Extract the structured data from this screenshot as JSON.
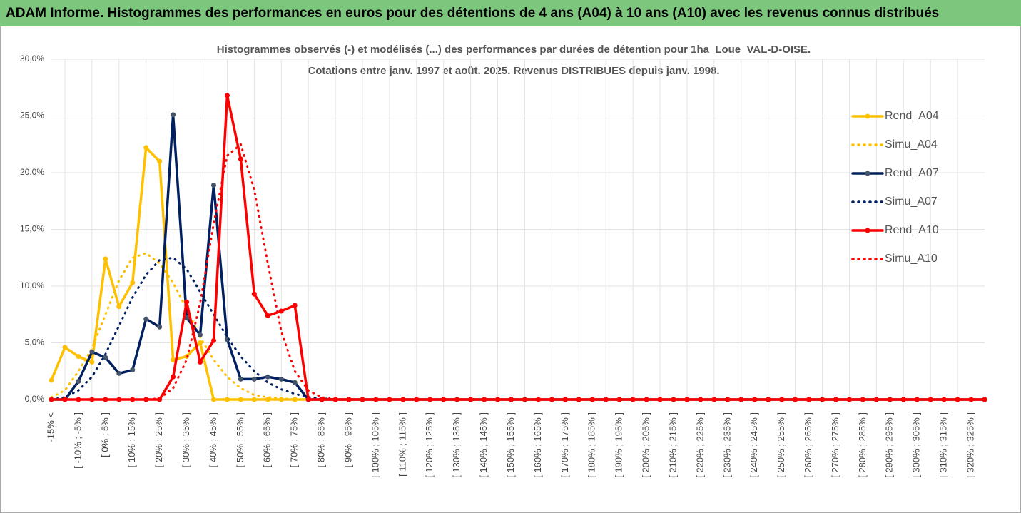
{
  "chart_data": {
    "type": "line",
    "title": "ADAM Informe. Histogrammes des performances en euros pour des détentions de 4 ans (A04) à 10 ans (A10) avec les revenus connus distribués",
    "subtitle": [
      "Histogrammes observés (-) et modélisés (...) des performances par durées de détention pour 1ha_Loue_VAL-D-OISE.",
      "Cotations entre janv. 1997 et août. 2025. Revenus DISTRIBUES depuis janv. 1998."
    ],
    "categories": [
      "-15% <",
      null,
      "[ -10% ; -5% ]",
      null,
      "[ 0% ; 5% ]",
      null,
      "[ 10% ; 15% ]",
      null,
      "[ 20% ; 25% ]",
      null,
      "[ 30% ; 35% ]",
      null,
      "[ 40% ; 45% ]",
      null,
      "[ 50% ; 55% ]",
      null,
      "[ 60% ; 65% ]",
      null,
      "[ 70% ; 75% ]",
      null,
      "[ 80% ; 85% ]",
      null,
      "[ 90% ; 95% ]",
      null,
      "[ 100% ; 105% ]",
      null,
      "[ 110% ; 115% ]",
      null,
      "[ 120% ; 125% ]",
      null,
      "[ 130% ; 135% ]",
      null,
      "[ 140% ; 145% ]",
      null,
      "[ 150% ; 155% ]",
      null,
      "[ 160% ; 165% ]",
      null,
      "[ 170% ; 175% ]",
      null,
      "[ 180% ; 185% ]",
      null,
      "[ 190% ; 195% ]",
      null,
      "[ 200% ; 205% ]",
      null,
      "[ 210% ; 215% ]",
      null,
      "[ 220% ; 225% ]",
      null,
      "[ 230% ; 235% ]",
      null,
      "[ 240% ; 245% ]",
      null,
      "[ 250% ; 255% ]",
      null,
      "[ 260% ; 265% ]",
      null,
      "[ 270% ; 275% ]",
      null,
      "[ 280% ; 285% ]",
      null,
      "[ 290% ; 295% ]",
      null,
      "[ 300% ; 305% ]",
      null,
      "[ 310% ; 315% ]",
      null,
      "[ 320% ; 325% ]",
      null
    ],
    "series": [
      {
        "name": "Rend_A04",
        "color": "#ffc000",
        "dash": "solid",
        "markers": true,
        "values": [
          1.7,
          4.6,
          3.8,
          3.3,
          12.4,
          8.2,
          10.3,
          22.2,
          21.0,
          3.5,
          3.8,
          5.0,
          0,
          0,
          0,
          0,
          0,
          0,
          0,
          0,
          0,
          0,
          0,
          0,
          0,
          0,
          0,
          0,
          0,
          0,
          0,
          0,
          0,
          0,
          0,
          0,
          0,
          0,
          0,
          0,
          0,
          0,
          0,
          0,
          0,
          0,
          0,
          0,
          0,
          0,
          0,
          0,
          0,
          0,
          0,
          0,
          0,
          0,
          0,
          0,
          0,
          0,
          0,
          0,
          0,
          0,
          0,
          0,
          0,
          0
        ]
      },
      {
        "name": "Simu_A04",
        "color": "#ffc000",
        "dash": "dotted",
        "markers": false,
        "values": [
          0.2,
          0.8,
          2.5,
          4.5,
          7.5,
          10.5,
          12.5,
          12.9,
          12.0,
          10.3,
          8.0,
          5.5,
          3.5,
          2.0,
          1.0,
          0.4,
          0.2,
          0.1,
          0,
          0,
          0,
          0,
          0,
          0,
          0,
          0,
          0,
          0,
          0,
          0,
          0,
          0,
          0,
          0,
          0,
          0,
          0,
          0,
          0,
          0,
          0,
          0,
          0,
          0,
          0,
          0,
          0,
          0,
          0,
          0,
          0,
          0,
          0,
          0,
          0,
          0,
          0,
          0,
          0,
          0,
          0,
          0,
          0,
          0,
          0,
          0,
          0,
          0,
          0,
          0
        ]
      },
      {
        "name": "Rend_A07",
        "color": "#002060",
        "dash": "solid",
        "markers": true,
        "values": [
          0,
          0,
          1.6,
          4.2,
          3.7,
          2.3,
          2.6,
          7.1,
          6.4,
          25.1,
          7.2,
          5.7,
          18.9,
          5.3,
          1.8,
          1.8,
          2.0,
          1.8,
          1.5,
          0,
          0,
          0,
          0,
          0,
          0,
          0,
          0,
          0,
          0,
          0,
          0,
          0,
          0,
          0,
          0,
          0,
          0,
          0,
          0,
          0,
          0,
          0,
          0,
          0,
          0,
          0,
          0,
          0,
          0,
          0,
          0,
          0,
          0,
          0,
          0,
          0,
          0,
          0,
          0,
          0,
          0,
          0,
          0,
          0,
          0,
          0,
          0,
          0,
          0,
          0
        ]
      },
      {
        "name": "Simu_A07",
        "color": "#002060",
        "dash": "dotted",
        "markers": false,
        "values": [
          0,
          0.2,
          0.8,
          2.0,
          4.0,
          6.5,
          9.0,
          11.0,
          12.3,
          12.5,
          11.5,
          9.5,
          7.5,
          5.5,
          3.8,
          2.5,
          1.5,
          0.9,
          0.5,
          0.2,
          0.1,
          0,
          0,
          0,
          0,
          0,
          0,
          0,
          0,
          0,
          0,
          0,
          0,
          0,
          0,
          0,
          0,
          0,
          0,
          0,
          0,
          0,
          0,
          0,
          0,
          0,
          0,
          0,
          0,
          0,
          0,
          0,
          0,
          0,
          0,
          0,
          0,
          0,
          0,
          0,
          0,
          0,
          0,
          0,
          0,
          0,
          0,
          0,
          0,
          0
        ]
      },
      {
        "name": "Rend_A10",
        "color": "#ff0000",
        "dash": "solid",
        "markers": true,
        "values": [
          0,
          0,
          0,
          0,
          0,
          0,
          0,
          0,
          0,
          2.0,
          8.6,
          3.3,
          5.2,
          26.8,
          21.2,
          9.3,
          7.4,
          7.8,
          8.3,
          0,
          0,
          0,
          0,
          0,
          0,
          0,
          0,
          0,
          0,
          0,
          0,
          0,
          0,
          0,
          0,
          0,
          0,
          0,
          0,
          0,
          0,
          0,
          0,
          0,
          0,
          0,
          0,
          0,
          0,
          0,
          0,
          0,
          0,
          0,
          0,
          0,
          0,
          0,
          0,
          0,
          0,
          0,
          0,
          0,
          0,
          0,
          0,
          0,
          0,
          0
        ]
      },
      {
        "name": "Simu_A10",
        "color": "#ff0000",
        "dash": "dotted",
        "markers": false,
        "values": [
          0,
          0,
          0,
          0,
          0,
          0,
          0,
          0,
          0.1,
          1.0,
          3.5,
          8.5,
          15.5,
          21.5,
          22.5,
          18.5,
          12.0,
          6.0,
          2.5,
          0.8,
          0.2,
          0,
          0,
          0,
          0,
          0,
          0,
          0,
          0,
          0,
          0,
          0,
          0,
          0,
          0,
          0,
          0,
          0,
          0,
          0,
          0,
          0,
          0,
          0,
          0,
          0,
          0,
          0,
          0,
          0,
          0,
          0,
          0,
          0,
          0,
          0,
          0,
          0,
          0,
          0,
          0,
          0,
          0,
          0,
          0,
          0,
          0,
          0,
          0,
          0
        ]
      }
    ],
    "ylim": [
      0,
      30
    ],
    "yticks": [
      {
        "value": 0,
        "label": "0,0%"
      },
      {
        "value": 5,
        "label": "5,0%"
      },
      {
        "value": 10,
        "label": "10,0%"
      },
      {
        "value": 15,
        "label": "15,0%"
      },
      {
        "value": 20,
        "label": "20,0%"
      },
      {
        "value": 25,
        "label": "25,0%"
      },
      {
        "value": 30,
        "label": "30,0%"
      }
    ],
    "grid": true,
    "legend": "right"
  }
}
